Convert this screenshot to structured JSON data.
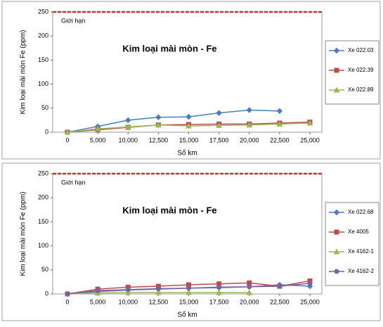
{
  "chart_data": [
    {
      "type": "line",
      "title": "Kim loại mài mòn - Fe",
      "x_label": "Số km",
      "y_label": "Kim loại mài mòn Fe  (ppm)",
      "limit": {
        "label": "Giới hạn",
        "value": 250,
        "color": "#c0392b"
      },
      "categories": [
        "0",
        "5,000",
        "10,000",
        "12,500",
        "15,000",
        "17,500",
        "20,000",
        "22,500",
        "25,000"
      ],
      "series": [
        {
          "name": "Xe 022.03",
          "color": "#4a7ebb",
          "marker": "diamond",
          "values": [
            0,
            12,
            25,
            31,
            32,
            40,
            46,
            44,
            null
          ]
        },
        {
          "name": "Xe 022.39",
          "color": "#be4b48",
          "marker": "square",
          "values": [
            0,
            5,
            10,
            15,
            16,
            17,
            17,
            19,
            21
          ]
        },
        {
          "name": "Xe 022.89",
          "color": "#98b954",
          "marker": "triangle",
          "values": [
            0,
            7,
            11,
            15,
            13,
            14,
            15,
            17,
            19
          ]
        }
      ],
      "ylim": [
        0,
        250
      ],
      "yticks": [
        0,
        50,
        100,
        150,
        200,
        250
      ],
      "grid": false,
      "legend": "right"
    },
    {
      "type": "line",
      "title": "Kim loại mài mòn - Fe",
      "x_label": "Số km",
      "y_label": "Kim loại mài mòn Fe  (ppm)",
      "limit": {
        "label": "Giới hạn",
        "value": 250,
        "color": "#c0392b"
      },
      "categories": [
        "0",
        "5,000",
        "10,000",
        "12,500",
        "15,000",
        "17,500",
        "20,000",
        "22,500",
        "25,000"
      ],
      "series": [
        {
          "name": "Xe 022.68",
          "color": "#4a7ebb",
          "marker": "diamond",
          "values": [
            0,
            5,
            8,
            10,
            12,
            13,
            15,
            19,
            16
          ]
        },
        {
          "name": "Xe 4005",
          "color": "#be4b48",
          "marker": "square",
          "values": [
            0,
            10,
            14,
            16,
            19,
            21,
            23,
            16,
            27
          ]
        },
        {
          "name": "Xe 4162-1",
          "color": "#98b954",
          "marker": "triangle",
          "values": [
            0,
            2,
            3,
            3,
            3,
            3,
            3,
            null,
            null
          ]
        },
        {
          "name": "Xe 4162-2",
          "color": "#7d60a0",
          "marker": "circle",
          "values": [
            0,
            7,
            9,
            11,
            12,
            14,
            15,
            16,
            22
          ]
        }
      ],
      "ylim": [
        0,
        250
      ],
      "yticks": [
        0,
        50,
        100,
        150,
        200,
        250
      ],
      "grid": false,
      "legend": "right"
    }
  ]
}
